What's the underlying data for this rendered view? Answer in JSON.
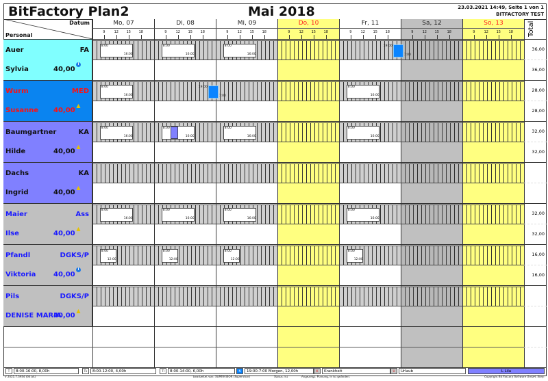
{
  "header": {
    "app_title": "BitFactory Plan2",
    "month_title": "Mai 2018",
    "print_info": "23.03.2021 14:49, Seite 1 von 1",
    "company": "BITFACTORY TEST",
    "corner_top": "Datum",
    "corner_bottom": "Personal",
    "total_label": "Total"
  },
  "colors": {
    "weekend_yellow": "#ffff80",
    "saturday_grey": "#c0c0c0",
    "night_blue": "#0a84ff",
    "lila": "#8080ff",
    "sunday_text": "#ff2020"
  },
  "days": [
    {
      "label": "Mo, 07",
      "type": "weekday"
    },
    {
      "label": "Di, 08",
      "type": "weekday"
    },
    {
      "label": "Mi, 09",
      "type": "weekday"
    },
    {
      "label": "Do, 10",
      "type": "holiday"
    },
    {
      "label": "Fr, 11",
      "type": "weekday"
    },
    {
      "label": "Sa, 12",
      "type": "saturday"
    },
    {
      "label": "So, 13",
      "type": "holiday"
    }
  ],
  "ticks": [
    "9",
    "12",
    "15",
    "18"
  ],
  "persons": [
    {
      "last": "Auer",
      "role": "FA",
      "first": "Sylvia",
      "hours": "40,00",
      "info_icon": "info-icon",
      "bg": "#80ffff",
      "fg": "#111111",
      "totals": [
        "36,00",
        "36,00"
      ],
      "shifts": [
        {
          "day": 0,
          "start": "8:00",
          "end": "16:00",
          "type": "T"
        },
        {
          "day": 1,
          "start": "8:00",
          "end": "16:00",
          "type": "T"
        },
        {
          "day": 2,
          "start": "8:00",
          "end": "16:00",
          "type": "T"
        },
        {
          "day": 4,
          "start": "19:00",
          "end": "7:00",
          "type": "N"
        }
      ]
    },
    {
      "last": "Wurm",
      "role": "MED",
      "first": "Susanne",
      "hours": "40,00",
      "info_icon": "warning-icon",
      "bg": "#0a84f0",
      "fg": "#ff1010",
      "totals": [
        "28,00",
        "28,00"
      ],
      "shifts": [
        {
          "day": 0,
          "start": "8:00",
          "end": "16:00",
          "type": "T"
        },
        {
          "day": 1,
          "start": "19:00",
          "end": "7:00",
          "type": "N"
        },
        {
          "day": 4,
          "start": "8:00",
          "end": "16:00",
          "type": "T"
        }
      ]
    },
    {
      "last": "Baumgartner",
      "role": "KA",
      "first": "Hilde",
      "hours": "40,00",
      "info_icon": "warning-icon",
      "bg": "#8080ff",
      "fg": "#111111",
      "totals": [
        "32,00",
        "32,00"
      ],
      "shifts": [
        {
          "day": 0,
          "start": "8:00",
          "end": "16:00",
          "type": "T"
        },
        {
          "day": 1,
          "start": "8:00",
          "end": "16:00",
          "type": "T",
          "marker": "L"
        },
        {
          "day": 2,
          "start": "8:00",
          "end": "16:00",
          "type": "T"
        },
        {
          "day": 4,
          "start": "8:00",
          "end": "16:00",
          "type": "T"
        }
      ]
    },
    {
      "last": "Dachs",
      "role": "KA",
      "first": "Ingrid",
      "hours": "40,00",
      "info_icon": "warning-icon",
      "bg": "#8080ff",
      "fg": "#111111",
      "totals": [
        "",
        ""
      ],
      "shifts": []
    },
    {
      "last": "Maier",
      "role": "Ass",
      "first": "Ilse",
      "hours": "40,00",
      "info_icon": "warning-icon",
      "bg": "#c0c0c0",
      "fg": "#1a1aff",
      "totals": [
        "32,00",
        "32,00"
      ],
      "shifts": [
        {
          "day": 0,
          "start": "8:00",
          "end": "16:00",
          "type": "T"
        },
        {
          "day": 1,
          "start": "8:00",
          "end": "16:00",
          "type": "T"
        },
        {
          "day": 2,
          "start": "8:00",
          "end": "16:00",
          "type": "T"
        },
        {
          "day": 4,
          "start": "8:00",
          "end": "16:00",
          "type": "T"
        }
      ]
    },
    {
      "last": "Pfandl",
      "role": "DGKS/P",
      "first": "Viktoria",
      "hours": "40,00",
      "info_icon": "info-icon",
      "bg": "#c0c0c0",
      "fg": "#1a1aff",
      "totals": [
        "16,00",
        "16,00"
      ],
      "shifts": [
        {
          "day": 0,
          "start": "8:00",
          "end": "12:00",
          "type": "Tk"
        },
        {
          "day": 1,
          "start": "8:00",
          "end": "12:00",
          "type": "Tk"
        },
        {
          "day": 2,
          "start": "8:00",
          "end": "12:00",
          "type": "Tk"
        },
        {
          "day": 4,
          "start": "8:00",
          "end": "12:00",
          "type": "Tk"
        }
      ]
    },
    {
      "last": "Pils",
      "role": "DGKS/P",
      "first": "DENISE MARIA",
      "hours": "40,00",
      "info_icon": "warning-icon",
      "bg": "#c0c0c0",
      "fg": "#1a1aff",
      "totals": [
        "",
        ""
      ],
      "shifts": []
    }
  ],
  "legend": [
    {
      "code": "T",
      "text": "8:00-16:00, 8,00h",
      "color": "#ffffff"
    },
    {
      "code": "Tk",
      "text": "8:00-12:00, 4,00h",
      "color": "#ffffff"
    },
    {
      "code": "Tl",
      "text": "8:00-14:00, 6,00h",
      "color": "#ffffff"
    },
    {
      "code": "N",
      "text": "19:00-7:00 Morgen, 12,00h",
      "color": "#0a84ff"
    },
    {
      "code": "K",
      "text": "Krankheit",
      "color": "#c8c8c8"
    },
    {
      "code": "U",
      "text": "Urlaub",
      "color": "#c8c8c8"
    }
  ],
  "legend_lila": "L Lila",
  "footer": {
    "version": "V 2021.7.3934 (64 bit)",
    "edited_by": "bearbeitet von: SUPERVISOR (Supervisor)",
    "status": "Status: Ist",
    "shown": "Angezeigt: Planung, in Ist geändert",
    "copyright": "Copyright Bit Factory Software GmbH, Steyr"
  }
}
